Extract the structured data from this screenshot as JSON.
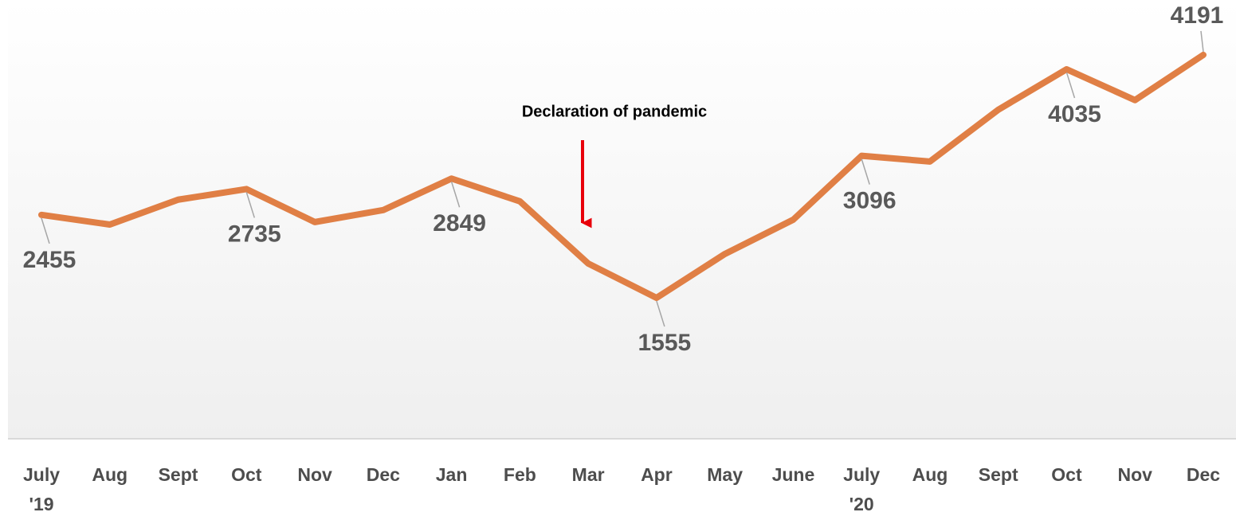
{
  "chart_data": {
    "type": "line",
    "categories": [
      "July '19",
      "Aug",
      "Sept",
      "Oct",
      "Nov",
      "Dec",
      "Jan",
      "Feb",
      "Mar",
      "Apr",
      "May",
      "June",
      "July '20",
      "Aug",
      "Sept",
      "Oct",
      "Nov",
      "Dec"
    ],
    "series": [
      {
        "color": "#e07f45",
        "values": [
          2455,
          2350,
          2620,
          2735,
          2377,
          2507,
          2849,
          2602,
          1927,
          1555,
          2031,
          2403,
          3096,
          3034,
          3596,
          4035,
          3700,
          4191
        ],
        "value_labels": [
          "2455",
          null,
          null,
          "2735",
          null,
          null,
          "2849",
          null,
          null,
          "1555",
          null,
          null,
          "3096",
          null,
          null,
          "4035",
          null,
          "4191"
        ]
      }
    ],
    "ylim": [
      0,
      4700
    ],
    "annotations": [
      {
        "text": "Declaration of pandemic"
      }
    ]
  }
}
